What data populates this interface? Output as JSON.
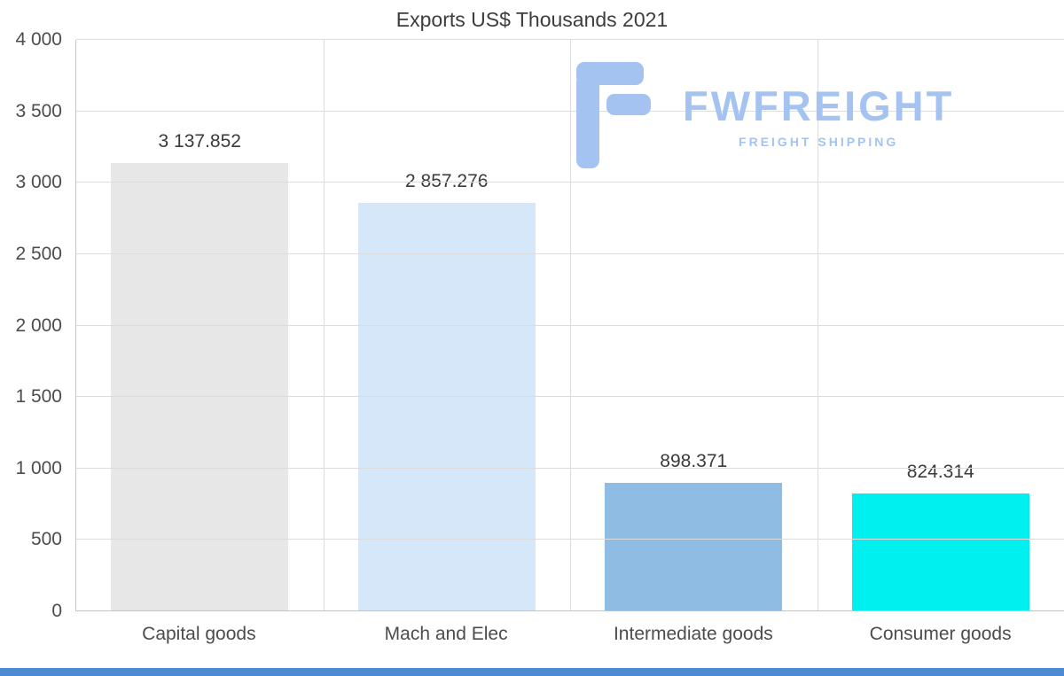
{
  "page": {
    "background": "#ffffff",
    "bottom_strip_color": "#4a8bd4"
  },
  "logo": {
    "name": "FWFREIGHT",
    "subtitle": "FREIGHT SHIPPING",
    "color": "#a5c3f1"
  },
  "chart_data": {
    "type": "bar",
    "title": "Exports US$ Thousands 2021",
    "categories": [
      "Capital goods",
      "Mach and Elec",
      "Intermediate goods",
      "Consumer goods"
    ],
    "values": [
      3137.852,
      2857.276,
      898.371,
      824.314
    ],
    "value_labels": [
      "3 137.852",
      "2 857.276",
      "898.371",
      "824.314"
    ],
    "bar_colors": [
      "#e7e7e7",
      "#d6e7fa",
      "#8fbce3",
      "#00efef"
    ],
    "xlabel": "",
    "ylabel": "",
    "ylim": [
      0,
      4000
    ],
    "ytick_step": 500,
    "ytick_labels": [
      "0",
      "500",
      "1 000",
      "1 500",
      "2 000",
      "2 500",
      "3 000",
      "3 500",
      "4 000"
    ],
    "grid": true,
    "legend_position": "none"
  }
}
